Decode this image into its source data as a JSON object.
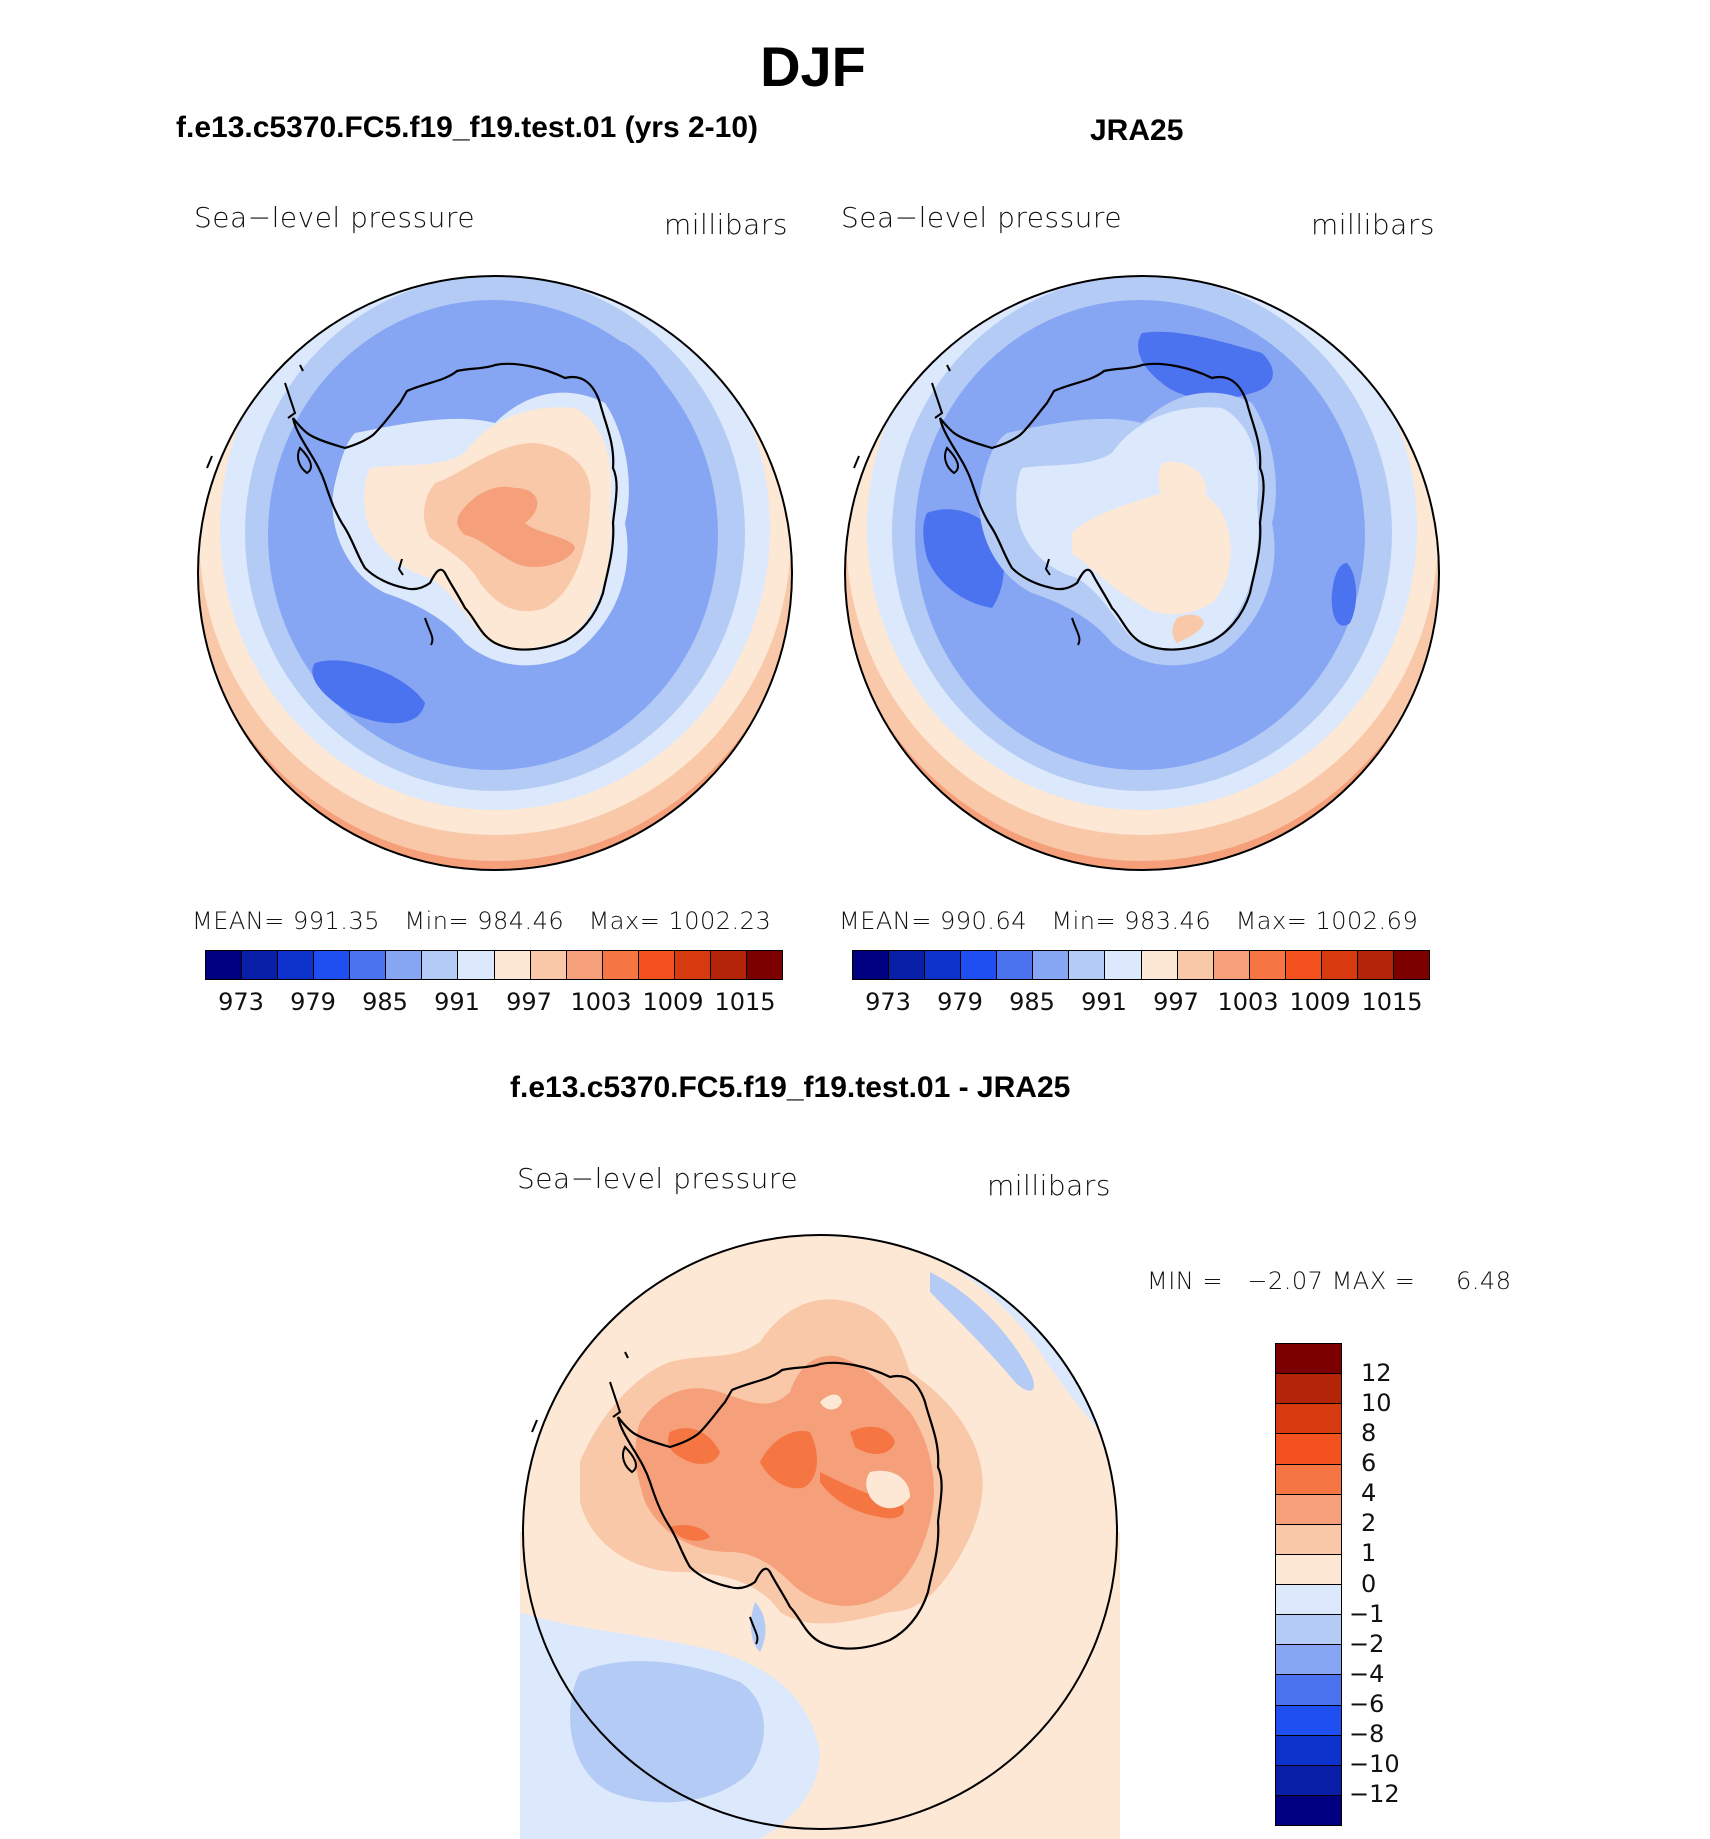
{
  "title": "DJF",
  "panels": {
    "model": {
      "subtitle": "f.e13.c5370.FC5.f19_f19.test.01 (yrs 2-10)",
      "variable": "Sea−level pressure",
      "units": "millibars",
      "mean_label": "MEAN=",
      "mean": "991.35",
      "min_label": "Min=",
      "min": "984.46",
      "max_label": "Max=",
      "max": "1002.23"
    },
    "obs": {
      "subtitle": "JRA25",
      "variable": "Sea−level pressure",
      "units": "millibars",
      "mean_label": "MEAN=",
      "mean": "990.64",
      "min_label": "Min=",
      "min": "983.46",
      "max_label": "Max=",
      "max": "1002.69"
    },
    "diff": {
      "subtitle": "f.e13.c5370.FC5.f19_f19.test.01 - JRA25",
      "variable": "Sea−level pressure",
      "units": "millibars",
      "min_label": "MIN =",
      "min": "−2.07",
      "max_label": "MAX =",
      "max": "6.48"
    }
  },
  "colorbar_main": {
    "colors": [
      "#000080",
      "#0a1fa8",
      "#0d33cc",
      "#1f4ff0",
      "#4b72ef",
      "#86a6f3",
      "#b4cbf6",
      "#dce8fb",
      "#fde8d6",
      "#f9c8a9",
      "#f5a07a",
      "#f57642",
      "#f3521f",
      "#d83a10",
      "#b42408",
      "#7d0000"
    ],
    "ticks": [
      "973",
      "979",
      "985",
      "991",
      "997",
      "1003",
      "1009",
      "1015"
    ]
  },
  "colorbar_diff": {
    "colors": [
      "#7d0000",
      "#b42408",
      "#d83a10",
      "#f3521f",
      "#f57642",
      "#f5a07a",
      "#f9c8a9",
      "#fde8d6",
      "#dce8fb",
      "#b4cbf6",
      "#86a6f3",
      "#4b72ef",
      "#1f4ff0",
      "#0d33cc",
      "#0a1fa8",
      "#000080"
    ],
    "ticks": [
      "12",
      "10",
      "8",
      "6",
      "4",
      "2",
      "1",
      "0",
      "−1",
      "−2",
      "−4",
      "−6",
      "−8",
      "−10",
      "−12"
    ]
  }
}
